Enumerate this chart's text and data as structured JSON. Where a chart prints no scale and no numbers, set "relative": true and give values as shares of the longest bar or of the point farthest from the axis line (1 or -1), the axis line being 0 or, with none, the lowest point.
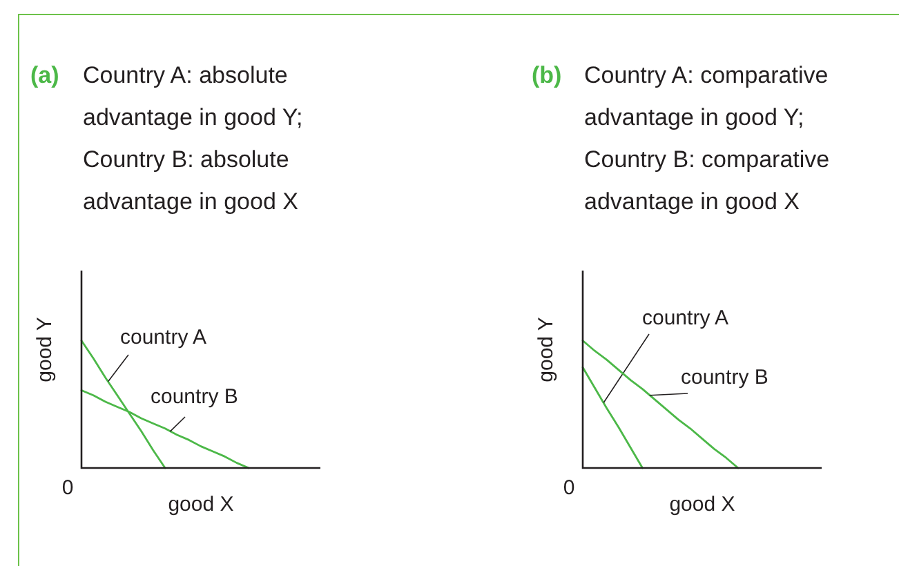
{
  "chart_data": [
    {
      "type": "line",
      "subtitle": "(a)",
      "title": "Country A: absolute\nadvantage in good Y;\nCountry B: absolute\nadvantage in good X",
      "xlabel": "good X",
      "ylabel": "good Y",
      "relative": true,
      "annotations": [
        "0"
      ],
      "categories": [
        null,
        null,
        null,
        null,
        null,
        null,
        null,
        null,
        null,
        null,
        null,
        null,
        null,
        null,
        null,
        null,
        null,
        null,
        null,
        null,
        null
      ],
      "series": [
        {
          "name": "country A",
          "color": "#4cb848",
          "values": [
            1,
            0.86,
            0.71,
            0.57,
            0.43,
            0.29,
            0.14,
            0,
            null,
            null,
            null,
            null,
            null,
            null,
            null,
            null,
            null,
            null,
            null,
            null,
            null
          ]
        },
        {
          "name": "country B",
          "color": "#4cb848",
          "values": [
            0.61,
            0.57,
            0.52,
            0.48,
            0.44,
            0.39,
            0.35,
            0.31,
            0.26,
            0.22,
            0.17,
            0.13,
            0.09,
            0.04,
            0,
            null,
            null,
            null,
            null,
            null,
            null
          ]
        }
      ]
    },
    {
      "type": "line",
      "subtitle": "(b)",
      "title": "Country A: comparative\nadvantage in good Y;\nCountry B: comparative\nadvantage in good X",
      "xlabel": "good X",
      "ylabel": "good Y",
      "relative": true,
      "annotations": [
        "0"
      ],
      "categories": [
        null,
        null,
        null,
        null,
        null,
        null,
        null,
        null,
        null,
        null,
        null,
        null,
        null,
        null,
        null,
        null,
        null,
        null,
        null,
        null,
        null
      ],
      "series": [
        {
          "name": "country A",
          "color": "#4cb848",
          "values": [
            0.79,
            0.63,
            0.47,
            0.32,
            0.16,
            0,
            null,
            null,
            null,
            null,
            null,
            null,
            null,
            null,
            null,
            null,
            null,
            null,
            null,
            null,
            null
          ]
        },
        {
          "name": "country B",
          "color": "#4cb848",
          "values": [
            1,
            0.92,
            0.85,
            0.77,
            0.69,
            0.62,
            0.54,
            0.46,
            0.38,
            0.31,
            0.23,
            0.15,
            0.08,
            0,
            null,
            null,
            null,
            null,
            null,
            null,
            null
          ]
        }
      ]
    }
  ]
}
